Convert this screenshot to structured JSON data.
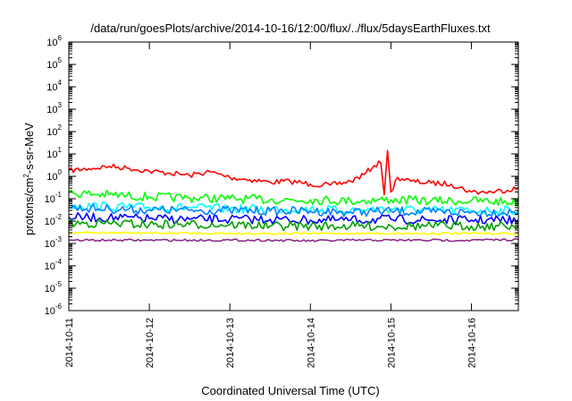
{
  "chart_data": {
    "type": "line",
    "title": "/data/run/goesPlots/archive/2014-10-16/12:00/flux/../flux/5daysEarthFluxes.txt",
    "xlabel": "Coordinated Universal Time (UTC)",
    "ylabel_parts": [
      "protons/cm",
      "2",
      "-s-sr-MeV"
    ],
    "ylabel": "protons/cm2-s-sr-MeV",
    "yscale": "log",
    "ylim": [
      1e-06,
      1000000.0
    ],
    "y_ticks": [
      {
        "base": "10",
        "exp": "-6",
        "value": 1e-06
      },
      {
        "base": "10",
        "exp": "-5",
        "value": 1e-05
      },
      {
        "base": "10",
        "exp": "-4",
        "value": 0.0001
      },
      {
        "base": "10",
        "exp": "-3",
        "value": 0.001
      },
      {
        "base": "10",
        "exp": "-2",
        "value": 0.01
      },
      {
        "base": "10",
        "exp": "-1",
        "value": 0.1
      },
      {
        "base": "10",
        "exp": "0",
        "value": 1.0
      },
      {
        "base": "10",
        "exp": "1",
        "value": 10.0
      },
      {
        "base": "10",
        "exp": "2",
        "value": 100.0
      },
      {
        "base": "10",
        "exp": "3",
        "value": 1000.0
      },
      {
        "base": "10",
        "exp": "4",
        "value": 10000.0
      },
      {
        "base": "10",
        "exp": "5",
        "value": 100000.0
      },
      {
        "base": "10",
        "exp": "6",
        "value": 1000000.0
      }
    ],
    "xlim": [
      "2014-10-11",
      "2014-10-16T14:00"
    ],
    "x_ticks": [
      "2014-10-11",
      "2014-10-12",
      "2014-10-13",
      "2014-10-14",
      "2014-10-15",
      "2014-10-16"
    ],
    "grid": false,
    "legend": "none",
    "series": [
      {
        "color": "#ff0000",
        "x": [
          "2014-10-11",
          "2014-10-11T06:00",
          "2014-10-11T12:00",
          "2014-10-11T18:00",
          "2014-10-12",
          "2014-10-12T06:00",
          "2014-10-12T12:00",
          "2014-10-12T18:00",
          "2014-10-13",
          "2014-10-13T06:00",
          "2014-10-13T12:00",
          "2014-10-13T18:00",
          "2014-10-14",
          "2014-10-14T06:00",
          "2014-10-14T12:00",
          "2014-10-14T16:00",
          "2014-10-14T19:00",
          "2014-10-14T21:00",
          "2014-10-14T22:00",
          "2014-10-14T23:00",
          "2014-10-15",
          "2014-10-15T02:00",
          "2014-10-15T06:00",
          "2014-10-15T12:00",
          "2014-10-15T18:00",
          "2014-10-16",
          "2014-10-16T06:00",
          "2014-10-16T14:00"
        ],
        "y": [
          1.8,
          2.2,
          2.8,
          2.3,
          1.7,
          1.4,
          1.1,
          1.6,
          0.9,
          0.7,
          0.55,
          0.6,
          0.45,
          0.4,
          0.6,
          1.2,
          3,
          4,
          0.15,
          14,
          0.2,
          0.9,
          0.6,
          0.5,
          0.45,
          0.2,
          0.2,
          0.3
        ]
      },
      {
        "color": "#00ff00",
        "x": [
          "2014-10-11",
          "2014-10-11T12:00",
          "2014-10-12",
          "2014-10-12T12:00",
          "2014-10-13",
          "2014-10-13T12:00",
          "2014-10-14",
          "2014-10-14T12:00",
          "2014-10-15",
          "2014-10-15T12:00",
          "2014-10-16",
          "2014-10-16T14:00"
        ],
        "y": [
          0.18,
          0.15,
          0.12,
          0.11,
          0.1,
          0.09,
          0.09,
          0.08,
          0.09,
          0.08,
          0.08,
          0.07
        ]
      },
      {
        "color": "#00ffff",
        "x": [
          "2014-10-11",
          "2014-10-11T12:00",
          "2014-10-12",
          "2014-10-12T12:00",
          "2014-10-13",
          "2014-10-13T12:00",
          "2014-10-14",
          "2014-10-14T12:00",
          "2014-10-15",
          "2014-10-15T12:00",
          "2014-10-16",
          "2014-10-16T14:00"
        ],
        "y": [
          0.05,
          0.045,
          0.04,
          0.04,
          0.035,
          0.035,
          0.035,
          0.03,
          0.035,
          0.03,
          0.03,
          0.03
        ]
      },
      {
        "color": "#0080ff",
        "x": [
          "2014-10-11",
          "2014-10-11T12:00",
          "2014-10-12",
          "2014-10-12T12:00",
          "2014-10-13",
          "2014-10-13T12:00",
          "2014-10-14",
          "2014-10-14T12:00",
          "2014-10-15",
          "2014-10-15T12:00",
          "2014-10-16",
          "2014-10-16T14:00"
        ],
        "y": [
          0.04,
          0.035,
          0.032,
          0.03,
          0.03,
          0.028,
          0.028,
          0.025,
          0.028,
          0.025,
          0.025,
          0.025
        ]
      },
      {
        "color": "#0000ff",
        "x": [
          "2014-10-11",
          "2014-10-11T12:00",
          "2014-10-12",
          "2014-10-12T12:00",
          "2014-10-13",
          "2014-10-13T12:00",
          "2014-10-14",
          "2014-10-14T12:00",
          "2014-10-15",
          "2014-10-15T12:00",
          "2014-10-16",
          "2014-10-16T14:00"
        ],
        "y": [
          0.015,
          0.014,
          0.013,
          0.012,
          0.012,
          0.012,
          0.011,
          0.011,
          0.012,
          0.011,
          0.011,
          0.011
        ]
      },
      {
        "color": "#00a000",
        "x": [
          "2014-10-11",
          "2014-10-11T12:00",
          "2014-10-12",
          "2014-10-12T12:00",
          "2014-10-13",
          "2014-10-13T12:00",
          "2014-10-14",
          "2014-10-14T12:00",
          "2014-10-15",
          "2014-10-15T12:00",
          "2014-10-16",
          "2014-10-16T14:00"
        ],
        "y": [
          0.008,
          0.008,
          0.007,
          0.007,
          0.007,
          0.006,
          0.006,
          0.006,
          0.006,
          0.006,
          0.006,
          0.006
        ]
      },
      {
        "color": "#ffff00",
        "x": [
          "2014-10-11",
          "2014-10-11T12:00",
          "2014-10-12",
          "2014-10-12T12:00",
          "2014-10-13",
          "2014-10-13T12:00",
          "2014-10-14",
          "2014-10-14T12:00",
          "2014-10-15",
          "2014-10-15T12:00",
          "2014-10-16",
          "2014-10-16T14:00"
        ],
        "y": [
          0.003,
          0.003,
          0.0029,
          0.0029,
          0.0028,
          0.0028,
          0.0028,
          0.0028,
          0.0028,
          0.0028,
          0.0028,
          0.0028
        ]
      },
      {
        "color": "#8b2d8b",
        "x": [
          "2014-10-11",
          "2014-10-11T12:00",
          "2014-10-12",
          "2014-10-12T12:00",
          "2014-10-13",
          "2014-10-13T12:00",
          "2014-10-14",
          "2014-10-14T12:00",
          "2014-10-15",
          "2014-10-15T12:00",
          "2014-10-16",
          "2014-10-16T14:00"
        ],
        "y": [
          0.0014,
          0.0014,
          0.0014,
          0.0014,
          0.0014,
          0.0014,
          0.0013,
          0.0014,
          0.0014,
          0.0014,
          0.0014,
          0.0015
        ]
      }
    ]
  }
}
